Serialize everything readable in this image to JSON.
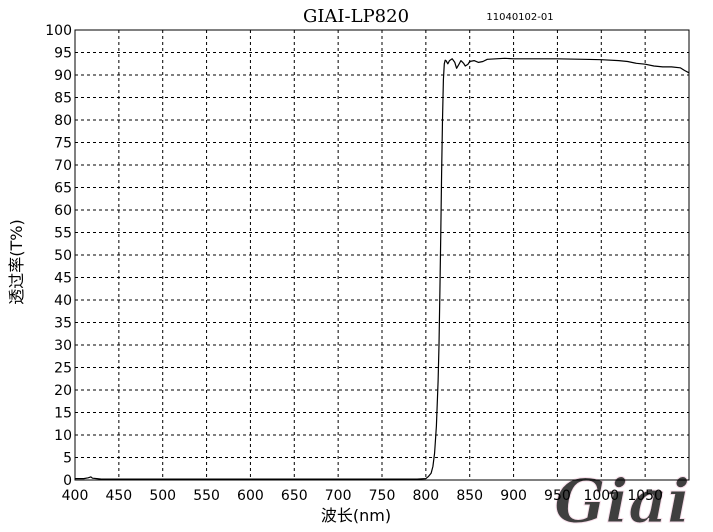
{
  "chart_data": {
    "type": "line",
    "title": "GIAI-LP820",
    "subtitle": "11040102-01",
    "xlabel": "波长(nm)",
    "ylabel": "透过率(T%)",
    "xlim": [
      400,
      1100
    ],
    "ylim": [
      0,
      100
    ],
    "x_ticks": [
      400,
      450,
      500,
      550,
      600,
      650,
      700,
      750,
      800,
      850,
      900,
      950,
      1000,
      1050
    ],
    "y_ticks": [
      0,
      5,
      10,
      15,
      20,
      25,
      30,
      35,
      40,
      45,
      50,
      55,
      60,
      65,
      70,
      75,
      80,
      85,
      90,
      95,
      100
    ],
    "grid": true,
    "grid_style": "dashed",
    "series": [
      {
        "color": "#000000",
        "x": [
          400,
          410,
          415,
          418,
          420,
          425,
          430,
          500,
          600,
          700,
          790,
          800,
          803,
          806,
          808,
          810,
          812,
          814,
          815,
          816,
          817,
          818,
          819,
          820,
          821,
          822,
          823,
          825,
          827,
          830,
          833,
          835,
          838,
          840,
          843,
          845,
          848,
          850,
          855,
          860,
          865,
          870,
          880,
          890,
          900,
          920,
          950,
          980,
          1000,
          1020,
          1030,
          1040,
          1050,
          1060,
          1070,
          1080,
          1090,
          1095,
          1100
        ],
        "y": [
          0.3,
          0.3,
          0.5,
          0.7,
          0.4,
          0.3,
          0.2,
          0.2,
          0.2,
          0.2,
          0.2,
          0.3,
          0.8,
          1.5,
          3,
          6,
          12,
          22,
          30,
          42,
          55,
          68,
          80,
          89,
          92.5,
          93.3,
          93.2,
          92.5,
          93.2,
          93.6,
          92.8,
          91.5,
          92.5,
          93.2,
          92.6,
          92.0,
          92.4,
          93.0,
          93.2,
          92.8,
          93.0,
          93.5,
          93.6,
          93.7,
          93.6,
          93.6,
          93.6,
          93.5,
          93.4,
          93.2,
          93.0,
          92.6,
          92.4,
          92.0,
          91.8,
          91.8,
          91.6,
          91.0,
          90.5
        ]
      }
    ]
  },
  "watermark": {
    "text": "Giai",
    "color": "#e8a4c4",
    "color_light": "#f3d3e2"
  }
}
